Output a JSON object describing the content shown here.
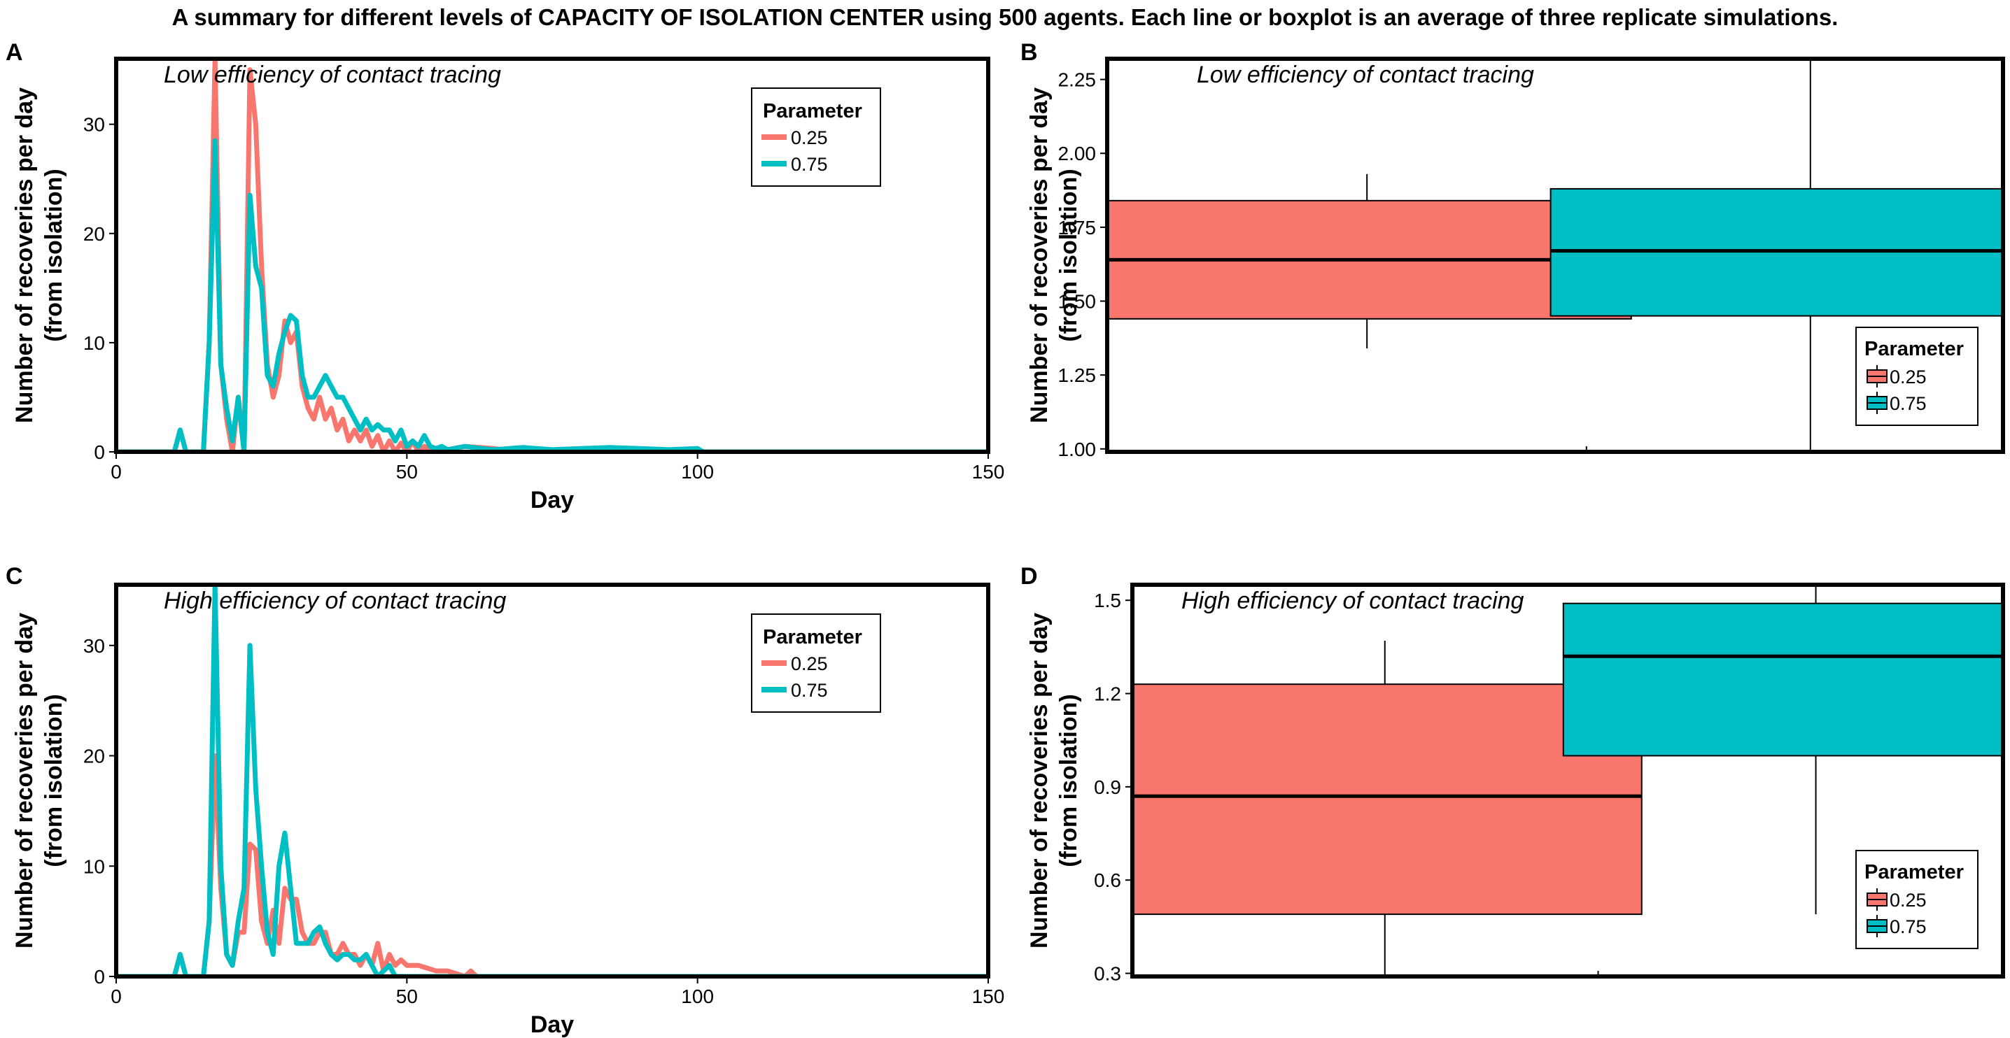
{
  "figure": {
    "title": "A summary for different levels of CAPACITY OF ISOLATION CENTER using 500 agents. Each line or boxplot is an average of three replicate simulations."
  },
  "legend": {
    "title": "Parameter",
    "entries": [
      "0.25",
      "0.75"
    ]
  },
  "colors": {
    "low": "#F8766D",
    "high": "#00BFC4"
  },
  "chart_data": [
    {
      "panel": "A",
      "type": "line",
      "annotation": "Low efficiency of contact tracing",
      "xlabel": "Day",
      "ylabel": [
        "Number of recoveries per day",
        "(from isolation)"
      ],
      "xlim": [
        0,
        150
      ],
      "ylim": [
        0,
        36
      ],
      "xticks": [
        0,
        50,
        100,
        150
      ],
      "yticks": [
        0,
        10,
        20,
        30
      ],
      "legend_position": "top-right",
      "series": [
        {
          "name": "0.25",
          "x": [
            0,
            10,
            11,
            12,
            15,
            16,
            17,
            18,
            19,
            20,
            21,
            22,
            23,
            24,
            25,
            26,
            27,
            28,
            29,
            30,
            31,
            32,
            33,
            34,
            35,
            36,
            37,
            38,
            39,
            40,
            41,
            42,
            43,
            44,
            45,
            46,
            47,
            48,
            49,
            50,
            51,
            52,
            53,
            55,
            60,
            65,
            70,
            80,
            150
          ],
          "values": [
            0,
            0,
            2,
            0,
            0,
            10,
            36,
            8,
            3,
            0,
            5,
            0,
            35,
            30,
            17,
            8,
            5,
            7,
            12,
            10,
            11,
            6,
            4,
            3,
            5,
            3,
            4,
            2,
            3,
            1,
            2,
            1,
            2,
            0.5,
            1.5,
            0,
            1,
            0,
            0.8,
            0,
            1,
            0,
            0.5,
            0,
            0.5,
            0.3,
            0,
            0,
            0
          ]
        },
        {
          "name": "0.75",
          "x": [
            0,
            10,
            11,
            12,
            15,
            16,
            17,
            18,
            19,
            20,
            21,
            22,
            23,
            24,
            25,
            26,
            27,
            28,
            29,
            30,
            31,
            32,
            33,
            34,
            35,
            36,
            37,
            38,
            39,
            40,
            41,
            42,
            43,
            44,
            45,
            46,
            47,
            48,
            49,
            50,
            51,
            52,
            53,
            54,
            55,
            56,
            57,
            60,
            63,
            65,
            70,
            75,
            80,
            85,
            90,
            95,
            100,
            101,
            150
          ],
          "values": [
            0,
            0,
            2,
            0,
            0,
            10,
            28.5,
            8,
            4,
            1,
            5,
            0,
            23.5,
            17,
            15,
            7,
            6,
            9,
            11,
            12.5,
            12,
            7,
            5,
            5,
            6,
            7,
            6,
            5,
            5,
            4,
            3,
            2,
            3,
            2,
            2.5,
            2,
            2,
            1,
            2,
            0.5,
            1,
            0.5,
            1.5,
            0.5,
            0.3,
            0.5,
            0.2,
            0.5,
            0.3,
            0.2,
            0.4,
            0.2,
            0.3,
            0.4,
            0.3,
            0.2,
            0.3,
            0,
            0
          ]
        }
      ]
    },
    {
      "panel": "B",
      "type": "box",
      "annotation": "Low efficiency of contact tracing",
      "ylabel": [
        "Number of recoveries per day",
        "(from isolation)"
      ],
      "ylim": [
        0.99,
        2.32
      ],
      "yticks": [
        "1.00",
        "1.25",
        "1.50",
        "1.75",
        "2.00",
        "2.25"
      ],
      "legend_position": "bottom-right",
      "boxes": [
        {
          "name": "0.25",
          "min": 1.34,
          "q1": 1.44,
          "median": 1.64,
          "q3": 1.84,
          "max": 1.93
        },
        {
          "name": "0.75",
          "min": 0.99,
          "q1": 1.45,
          "median": 1.67,
          "q3": 1.88,
          "max": 2.32
        }
      ]
    },
    {
      "panel": "C",
      "type": "line",
      "annotation": "High efficiency of contact tracing",
      "xlabel": "Day",
      "ylabel": [
        "Number of recoveries per day",
        "(from isolation)"
      ],
      "xlim": [
        0,
        150
      ],
      "ylim": [
        0,
        35.5
      ],
      "xticks": [
        0,
        50,
        100,
        150
      ],
      "yticks": [
        0,
        10,
        20,
        30
      ],
      "legend_position": "top-right",
      "series": [
        {
          "name": "0.25",
          "x": [
            0,
            10,
            11,
            12,
            15,
            16,
            17,
            18,
            19,
            20,
            21,
            22,
            23,
            24,
            25,
            26,
            27,
            28,
            29,
            30,
            31,
            32,
            33,
            34,
            35,
            36,
            37,
            38,
            39,
            40,
            41,
            42,
            43,
            44,
            45,
            46,
            47,
            48,
            49,
            50,
            52,
            55,
            57,
            60,
            61,
            62,
            63,
            150
          ],
          "values": [
            0,
            0,
            2,
            0,
            0,
            5,
            20,
            8,
            2,
            1,
            4,
            4,
            12,
            11.5,
            5,
            3,
            6,
            3,
            8,
            7,
            7,
            4,
            3,
            3,
            4,
            4,
            2,
            2,
            3,
            2,
            2,
            1,
            2,
            1,
            3,
            0.5,
            2,
            1,
            1.5,
            1,
            1,
            0.5,
            0.5,
            0,
            0.5,
            0,
            0,
            0
          ]
        },
        {
          "name": "0.75",
          "x": [
            0,
            10,
            11,
            12,
            15,
            16,
            17,
            18,
            19,
            20,
            21,
            22,
            23,
            24,
            25,
            26,
            27,
            28,
            29,
            30,
            31,
            32,
            33,
            34,
            35,
            36,
            37,
            38,
            39,
            40,
            41,
            42,
            43,
            44,
            45,
            46,
            47,
            48,
            49,
            50,
            150
          ],
          "values": [
            0,
            0,
            2,
            0,
            0,
            5,
            35.5,
            10,
            2,
            1,
            5,
            8,
            30,
            17,
            10,
            4,
            2,
            10,
            13,
            8,
            3,
            3,
            3,
            4,
            4.5,
            3,
            2,
            1.5,
            2,
            2,
            1.5,
            1.5,
            2,
            1,
            0,
            0.5,
            1,
            0,
            0,
            0,
            0
          ]
        }
      ]
    },
    {
      "panel": "D",
      "type": "box",
      "annotation": "High efficiency of contact tracing",
      "ylabel": [
        "Number of recoveries per day",
        "(from isolation)"
      ],
      "ylim": [
        0.29,
        1.55
      ],
      "yticks": [
        "0.3",
        "0.6",
        "0.9",
        "1.2",
        "1.5"
      ],
      "legend_position": "bottom-right",
      "boxes": [
        {
          "name": "0.25",
          "min": 0.29,
          "q1": 0.49,
          "median": 0.87,
          "q3": 1.23,
          "max": 1.37
        },
        {
          "name": "0.75",
          "min": 0.49,
          "q1": 1.0,
          "median": 1.32,
          "q3": 1.49,
          "max": 1.55
        }
      ]
    }
  ]
}
